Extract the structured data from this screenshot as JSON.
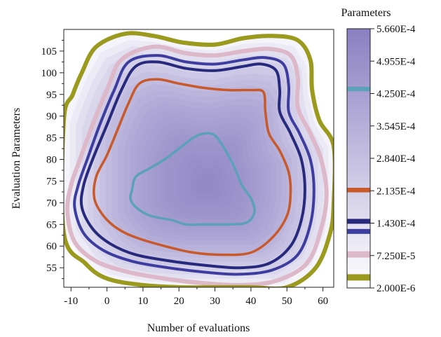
{
  "chart_data": {
    "type": "contour",
    "xlabel": "Number of evaluations",
    "ylabel": "Evaluation Parameters",
    "xlim": [
      -12,
      63
    ],
    "ylim": [
      50.5,
      110
    ],
    "x_ticks": [
      -10,
      0,
      10,
      20,
      30,
      40,
      50,
      60
    ],
    "y_ticks": [
      55,
      60,
      65,
      70,
      75,
      80,
      85,
      90,
      95,
      100,
      105
    ],
    "peak": {
      "x": 28,
      "y": 74,
      "value": 0.000566
    },
    "fill_colors": {
      "low": "#ffffff",
      "high": "#8a7fc2"
    },
    "colorbar": {
      "title": "Parameters",
      "min": 2e-06,
      "max": 0.000566,
      "tick_labels": [
        "5.660E-4",
        "4.955E-4",
        "4.250E-4",
        "3.545E-4",
        "2.840E-4",
        "2.135E-4",
        "1.430E-4",
        "7.250E-5",
        "2.000E-6"
      ],
      "tick_values": [
        0.000566,
        0.0004955,
        0.000425,
        0.0003545,
        0.000284,
        0.0002135,
        0.000143,
        7.25e-05,
        2e-06
      ]
    },
    "contour_levels": [
      {
        "value": 0.000435,
        "color": "#5ca1b8",
        "width": 3.5,
        "path": [
          [
            7,
            73
          ],
          [
            8,
            76
          ],
          [
            12,
            78
          ],
          [
            16,
            80
          ],
          [
            20,
            82.5
          ],
          [
            24,
            85
          ],
          [
            27,
            86
          ],
          [
            30,
            85.5
          ],
          [
            33,
            82
          ],
          [
            35.5,
            78
          ],
          [
            37.5,
            74
          ],
          [
            40,
            71
          ],
          [
            41,
            68
          ],
          [
            39,
            65.5
          ],
          [
            34,
            65
          ],
          [
            28,
            65
          ],
          [
            22,
            65
          ],
          [
            18,
            66
          ],
          [
            12,
            67
          ],
          [
            8,
            69
          ],
          [
            6.5,
            71
          ]
        ]
      },
      {
        "value": 0.000215,
        "color": "#c8592a",
        "width": 3.5,
        "path": [
          [
            -3,
            76
          ],
          [
            0,
            81
          ],
          [
            3,
            87
          ],
          [
            6,
            93
          ],
          [
            9,
            97.5
          ],
          [
            14,
            98.5
          ],
          [
            20,
            97.5
          ],
          [
            27,
            96.5
          ],
          [
            34,
            96
          ],
          [
            40,
            96
          ],
          [
            43.5,
            95.5
          ],
          [
            44,
            91
          ],
          [
            45,
            86
          ],
          [
            48,
            82
          ],
          [
            50.5,
            77
          ],
          [
            51,
            72
          ],
          [
            50,
            67
          ],
          [
            46,
            62
          ],
          [
            40,
            58.5
          ],
          [
            32,
            58
          ],
          [
            24,
            58.5
          ],
          [
            16,
            60
          ],
          [
            8,
            62
          ],
          [
            3,
            64
          ],
          [
            -1,
            67
          ],
          [
            -3.5,
            71
          ]
        ]
      },
      {
        "value": 0.000147,
        "color": "#272a7c",
        "width": 4,
        "path": [
          [
            -6.5,
            74
          ],
          [
            -4,
            80
          ],
          [
            0,
            88
          ],
          [
            4,
            96
          ],
          [
            8,
            101.5
          ],
          [
            14,
            102.5
          ],
          [
            22,
            101
          ],
          [
            30,
            100.5
          ],
          [
            38,
            101.5
          ],
          [
            43,
            102
          ],
          [
            47,
            100.5
          ],
          [
            48,
            96
          ],
          [
            48,
            91
          ],
          [
            51,
            86
          ],
          [
            54,
            80
          ],
          [
            55,
            73
          ],
          [
            54,
            66
          ],
          [
            51,
            60
          ],
          [
            45,
            56
          ],
          [
            37,
            55
          ],
          [
            28,
            55.5
          ],
          [
            18,
            56.5
          ],
          [
            8,
            58
          ],
          [
            1,
            60.5
          ],
          [
            -4,
            64
          ],
          [
            -7,
            69
          ]
        ]
      },
      {
        "value": 0.000125,
        "color": "#3d3da0",
        "width": 4,
        "path": [
          [
            -8,
            74
          ],
          [
            -5.5,
            80
          ],
          [
            -2,
            88
          ],
          [
            2,
            96
          ],
          [
            6,
            102.5
          ],
          [
            14,
            104
          ],
          [
            22,
            102.5
          ],
          [
            30,
            102
          ],
          [
            38,
            103
          ],
          [
            44,
            103.5
          ],
          [
            49,
            102
          ],
          [
            50.5,
            97
          ],
          [
            50.5,
            91
          ],
          [
            53.5,
            86
          ],
          [
            56.5,
            80
          ],
          [
            57.5,
            73
          ],
          [
            56.5,
            65
          ],
          [
            53,
            58
          ],
          [
            46,
            54.5
          ],
          [
            37,
            53.5
          ],
          [
            27,
            54
          ],
          [
            17,
            55
          ],
          [
            7,
            56.5
          ],
          [
            -1,
            59
          ],
          [
            -6.5,
            63
          ],
          [
            -9,
            69
          ]
        ]
      },
      {
        "value": 7.5e-05,
        "color": "#ddb8c8",
        "width": 6,
        "path": [
          [
            -10,
            74
          ],
          [
            -7.5,
            80
          ],
          [
            -4,
            88
          ],
          [
            0,
            96
          ],
          [
            4,
            103
          ],
          [
            13,
            106
          ],
          [
            22,
            104.5
          ],
          [
            30,
            104
          ],
          [
            38,
            105
          ],
          [
            45,
            105.5
          ],
          [
            51,
            104
          ],
          [
            53,
            99
          ],
          [
            53,
            92
          ],
          [
            56.5,
            86
          ],
          [
            59.5,
            80
          ],
          [
            61,
            72
          ],
          [
            59.5,
            64
          ],
          [
            55.5,
            56
          ],
          [
            47,
            52
          ],
          [
            37,
            51
          ],
          [
            26,
            51.5
          ],
          [
            16,
            52.5
          ],
          [
            6,
            54
          ],
          [
            -3,
            56.5
          ],
          [
            -9,
            61
          ],
          [
            -11,
            68
          ]
        ]
      },
      {
        "value": 2.5e-05,
        "color": "#9b9a1e",
        "width": 6,
        "path": [
          [
            -12,
            89
          ],
          [
            -9.5,
            95
          ],
          [
            -7,
            100
          ],
          [
            -3,
            106
          ],
          [
            5,
            109
          ],
          [
            13,
            108.5
          ],
          [
            21,
            107
          ],
          [
            30,
            106.5
          ],
          [
            38,
            108
          ],
          [
            46,
            108.5
          ],
          [
            53,
            107.5
          ],
          [
            56.5,
            103
          ],
          [
            57,
            96
          ],
          [
            59,
            89
          ],
          [
            63,
            83
          ],
          [
            63,
            70
          ],
          [
            62,
            63
          ],
          [
            58,
            55
          ],
          [
            50,
            50.5
          ],
          [
            40,
            50.5
          ],
          [
            30,
            50.5
          ],
          [
            20,
            50.5
          ],
          [
            10,
            51
          ],
          [
            0,
            52.5
          ],
          [
            -6,
            56
          ],
          [
            -12,
            63
          ]
        ]
      }
    ]
  }
}
